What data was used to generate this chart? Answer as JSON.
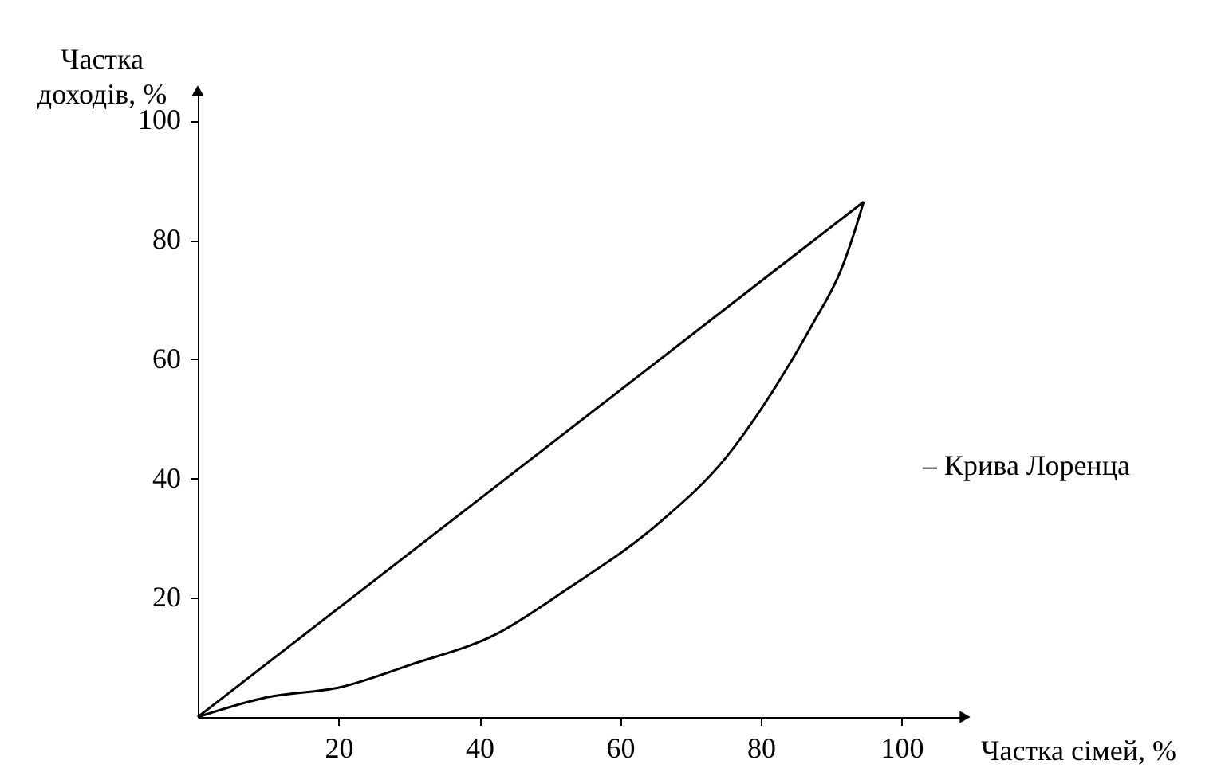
{
  "chart_data": {
    "type": "line",
    "xlabel": "Частка сімей, %",
    "ylabel": "Частка\nдоходів, %",
    "xlim": [
      0,
      109
    ],
    "ylim": [
      0,
      105
    ],
    "xticks": [
      20,
      40,
      60,
      80,
      100
    ],
    "yticks": [
      20,
      40,
      60,
      80,
      100
    ],
    "grid": false,
    "marker": "none",
    "line_style": "solid",
    "series": [
      {
        "color": "#000000",
        "x": [
          0,
          94.6
        ],
        "values": [
          0,
          86.4
        ]
      },
      {
        "color": "#000000",
        "x": [
          0,
          9.8,
          20.3,
          30.3,
          42.4,
          52.4,
          65.7,
          75.1,
          82.1,
          87.4,
          91.4,
          93.2,
          94.6
        ],
        "values": [
          0,
          3.3,
          5,
          8.8,
          13.9,
          21.4,
          32.7,
          43.6,
          55.4,
          66,
          75,
          81,
          86.4
        ]
      }
    ],
    "annotations": [
      "– Крива Лоренца"
    ]
  }
}
